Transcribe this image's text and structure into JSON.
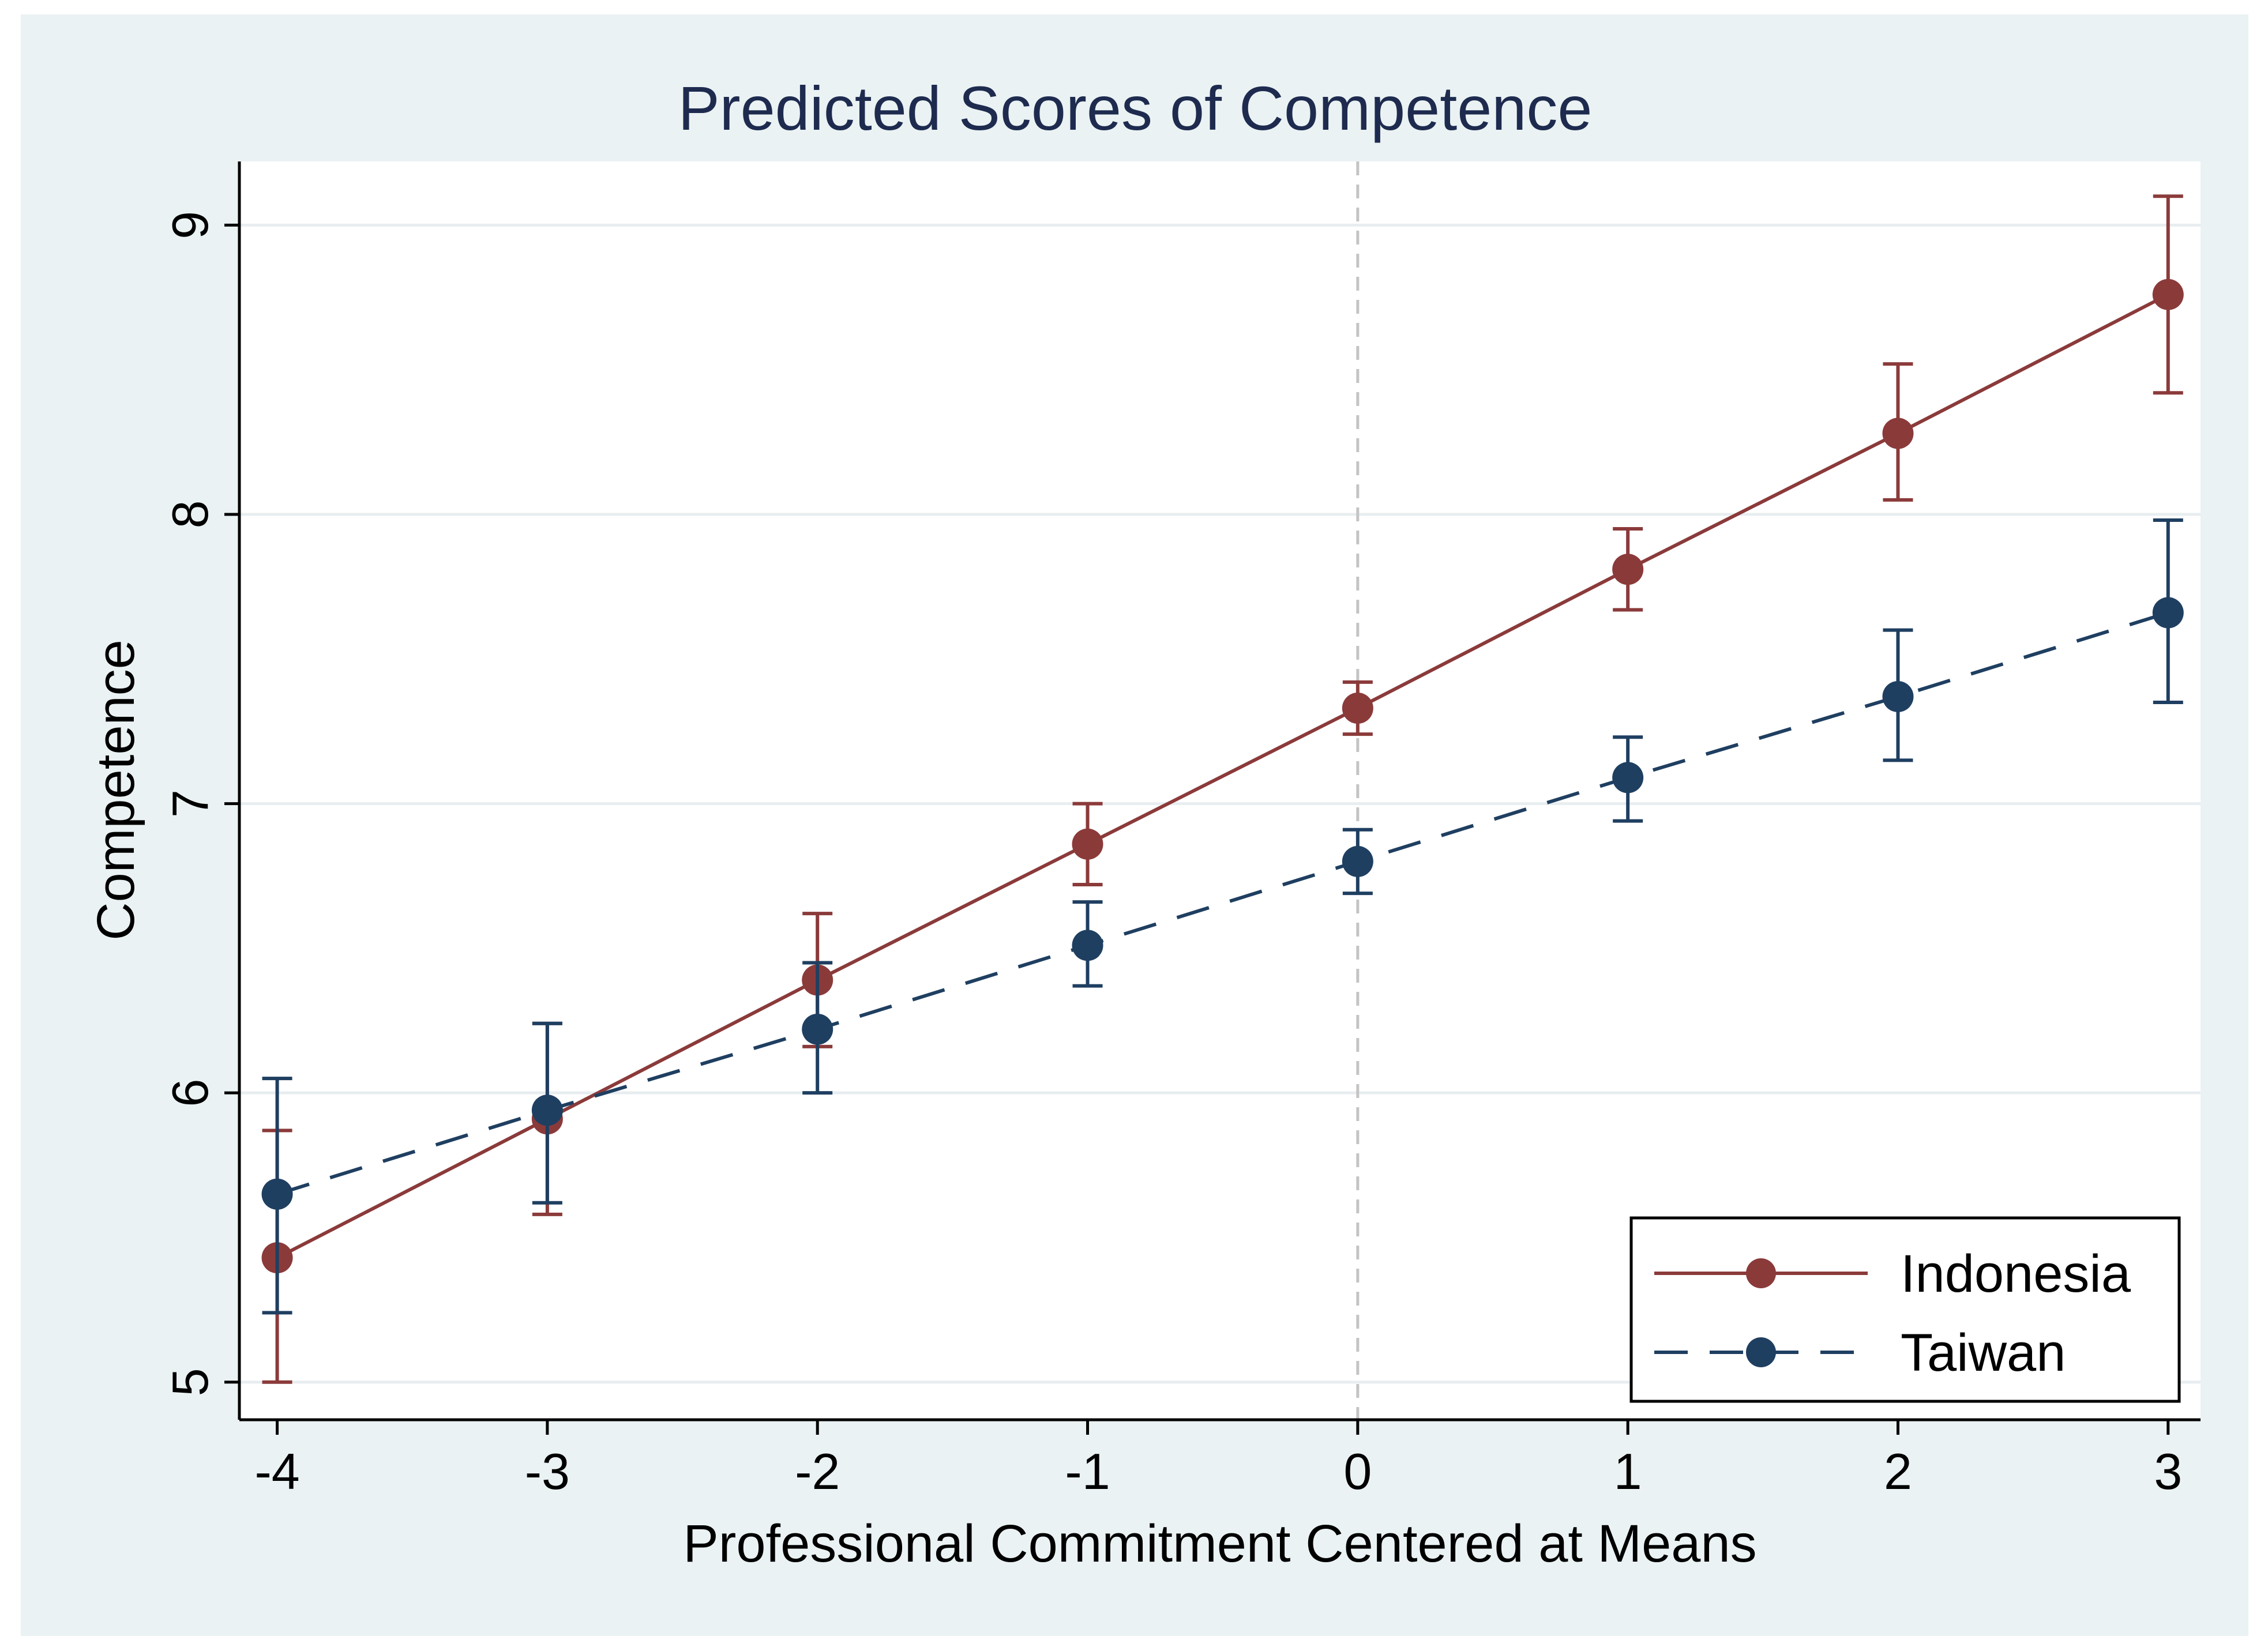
{
  "chart_data": {
    "type": "line",
    "title": "Predicted Scores of Competence",
    "xlabel": "Professional Commitment Centered at Means",
    "ylabel": "Competence",
    "x": [
      -4,
      -3,
      -2,
      -1,
      0,
      1,
      2,
      3
    ],
    "xticks": [
      -4,
      -3,
      -2,
      -1,
      0,
      1,
      2,
      3
    ],
    "xtick_labels": [
      "-4",
      "-3",
      "-2",
      "-1",
      "0",
      "1",
      "2",
      "3"
    ],
    "yticks": [
      5,
      6,
      7,
      8,
      9
    ],
    "ytick_labels": [
      "5",
      "6",
      "7",
      "8",
      "9"
    ],
    "xlim": [
      -4.14,
      3.12
    ],
    "ylim": [
      4.87,
      9.22
    ],
    "reference_line_x": 0,
    "grid": true,
    "legend_position": "bottom-right",
    "series": [
      {
        "name": "Indonesia",
        "color": "#8b3a3a",
        "linestyle": "solid",
        "values": [
          5.43,
          5.91,
          6.39,
          6.86,
          7.33,
          7.81,
          8.28,
          8.76
        ],
        "ci_low": [
          5.0,
          5.58,
          6.16,
          6.72,
          7.24,
          7.67,
          8.05,
          8.42
        ],
        "ci_high": [
          5.87,
          6.24,
          6.62,
          7.0,
          7.42,
          7.95,
          8.52,
          9.1
        ]
      },
      {
        "name": "Taiwan",
        "color": "#1f3f61",
        "linestyle": "dashed",
        "values": [
          5.65,
          5.94,
          6.22,
          6.51,
          6.8,
          7.09,
          7.37,
          7.66
        ],
        "ci_low": [
          5.24,
          5.62,
          6.0,
          6.37,
          6.69,
          6.94,
          7.15,
          7.35
        ],
        "ci_high": [
          6.05,
          6.24,
          6.45,
          6.66,
          6.91,
          7.23,
          7.6,
          7.98
        ]
      }
    ]
  }
}
